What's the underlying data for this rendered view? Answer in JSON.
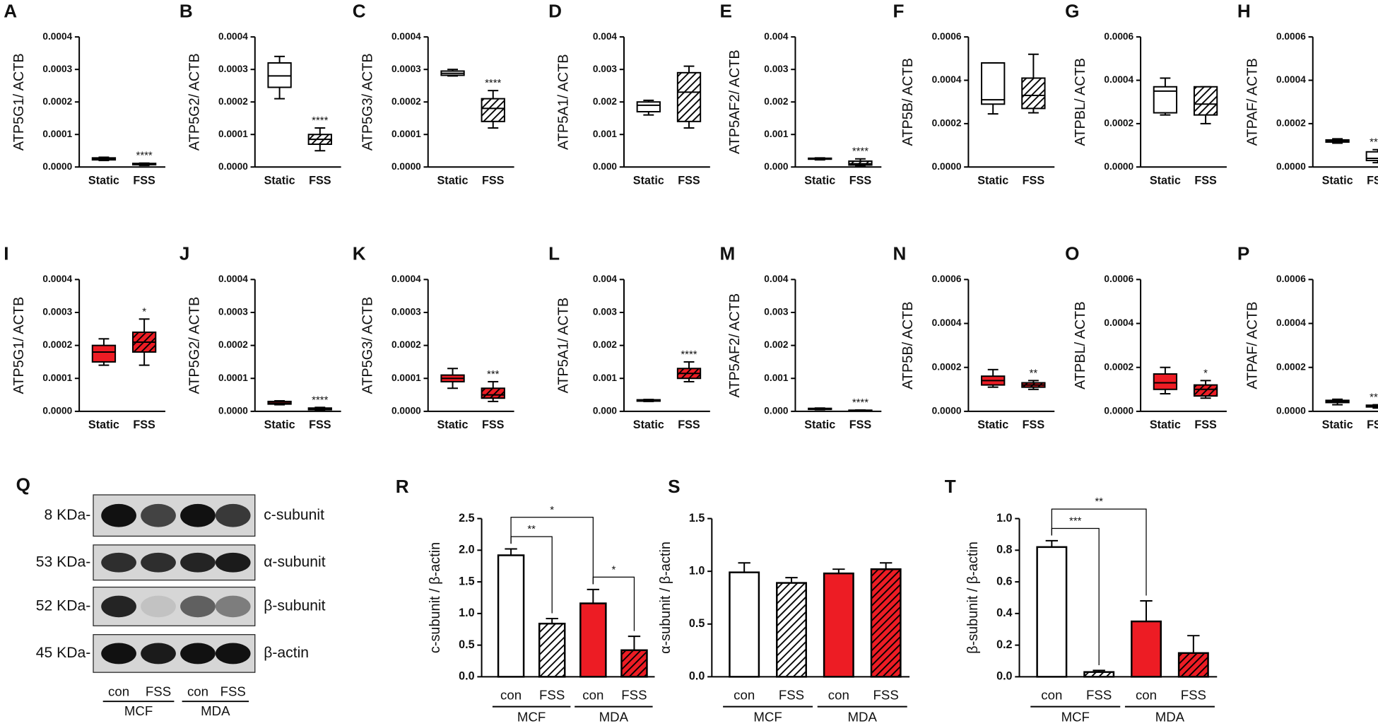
{
  "chart_data": [
    {
      "type": "box",
      "label": "A",
      "ylabel": "ATP5G1/ ACTB",
      "categories": [
        "Static",
        "FSS"
      ],
      "ylim": [
        0,
        0.0004
      ],
      "yticks": [
        {
          "value": 0,
          "label": "0.0000"
        },
        {
          "value": 0.0001,
          "label": "0.0001"
        },
        {
          "value": 0.0002,
          "label": "0.0002"
        },
        {
          "value": 0.0003,
          "label": "0.0003"
        },
        {
          "value": 0.0004,
          "label": "0.0004"
        }
      ],
      "boxes": [
        {
          "min": 2e-05,
          "q1": 2.2e-05,
          "median": 2.5e-05,
          "q3": 2.8e-05,
          "max": 3e-05,
          "color": "#ffffff",
          "hatch": false
        },
        {
          "min": 5e-06,
          "q1": 7e-06,
          "median": 9e-06,
          "q3": 1.1e-05,
          "max": 1.2e-05,
          "color": "#ffffff",
          "hatch": true,
          "sig": "****"
        }
      ]
    },
    {
      "type": "box",
      "label": "B",
      "ylabel": "ATP5G2/ ACTB",
      "categories": [
        "Static",
        "FSS"
      ],
      "ylim": [
        0,
        0.0004
      ],
      "yticks": [
        {
          "value": 0,
          "label": "0.0000"
        },
        {
          "value": 0.0001,
          "label": "0.0001"
        },
        {
          "value": 0.0002,
          "label": "0.0002"
        },
        {
          "value": 0.0003,
          "label": "0.0003"
        },
        {
          "value": 0.0004,
          "label": "0.0004"
        }
      ],
      "boxes": [
        {
          "min": 0.00021,
          "q1": 0.000245,
          "median": 0.00028,
          "q3": 0.00032,
          "max": 0.00034,
          "color": "#ffffff",
          "hatch": false
        },
        {
          "min": 5e-05,
          "q1": 7e-05,
          "median": 8.5e-05,
          "q3": 0.0001,
          "max": 0.00012,
          "color": "#ffffff",
          "hatch": true,
          "sig": "****"
        }
      ]
    },
    {
      "type": "box",
      "label": "C",
      "ylabel": "ATP5G3/ ACTB",
      "categories": [
        "Static",
        "FSS"
      ],
      "ylim": [
        0,
        0.0004
      ],
      "yticks": [
        {
          "value": 0,
          "label": "0.0000"
        },
        {
          "value": 0.0001,
          "label": "0.0001"
        },
        {
          "value": 0.0002,
          "label": "0.0002"
        },
        {
          "value": 0.0003,
          "label": "0.0003"
        },
        {
          "value": 0.0004,
          "label": "0.0004"
        }
      ],
      "boxes": [
        {
          "min": 0.00028,
          "q1": 0.000282,
          "median": 0.000288,
          "q3": 0.000295,
          "max": 0.0003,
          "color": "#ffffff",
          "hatch": false
        },
        {
          "min": 0.00012,
          "q1": 0.00014,
          "median": 0.00018,
          "q3": 0.00021,
          "max": 0.000235,
          "color": "#ffffff",
          "hatch": true,
          "sig": "****"
        }
      ]
    },
    {
      "type": "box",
      "label": "D",
      "ylabel": "ATP5A1/ ACTB",
      "categories": [
        "Static",
        "FSS"
      ],
      "ylim": [
        0,
        0.004
      ],
      "yticks": [
        {
          "value": 0,
          "label": "0.000"
        },
        {
          "value": 0.001,
          "label": "0.001"
        },
        {
          "value": 0.002,
          "label": "0.002"
        },
        {
          "value": 0.003,
          "label": "0.003"
        },
        {
          "value": 0.004,
          "label": "0.004"
        }
      ],
      "boxes": [
        {
          "min": 0.0016,
          "q1": 0.0017,
          "median": 0.0019,
          "q3": 0.002,
          "max": 0.00205,
          "color": "#ffffff",
          "hatch": false
        },
        {
          "min": 0.0012,
          "q1": 0.0014,
          "median": 0.0023,
          "q3": 0.0029,
          "max": 0.0031,
          "color": "#ffffff",
          "hatch": true
        }
      ]
    },
    {
      "type": "box",
      "label": "E",
      "ylabel": "ATP5AF2/ ACTB",
      "categories": [
        "Static",
        "FSS"
      ],
      "ylim": [
        0,
        0.004
      ],
      "yticks": [
        {
          "value": 0,
          "label": "0.000"
        },
        {
          "value": 0.001,
          "label": "0.001"
        },
        {
          "value": 0.002,
          "label": "0.002"
        },
        {
          "value": 0.003,
          "label": "0.003"
        },
        {
          "value": 0.004,
          "label": "0.004"
        }
      ],
      "boxes": [
        {
          "min": 0.00022,
          "q1": 0.00024,
          "median": 0.00025,
          "q3": 0.00027,
          "max": 0.00028,
          "color": "#ffffff",
          "hatch": false
        },
        {
          "min": 2e-05,
          "q1": 6e-05,
          "median": 0.0001,
          "q3": 0.00018,
          "max": 0.00025,
          "color": "#ffffff",
          "hatch": true,
          "sig": "****"
        }
      ]
    },
    {
      "type": "box",
      "label": "F",
      "ylabel": "ATP5B/ ACTB",
      "categories": [
        "Static",
        "FSS"
      ],
      "ylim": [
        0,
        0.0006
      ],
      "yticks": [
        {
          "value": 0,
          "label": "0.0000"
        },
        {
          "value": 0.0002,
          "label": "0.0002"
        },
        {
          "value": 0.0004,
          "label": "0.0004"
        },
        {
          "value": 0.0006,
          "label": "0.0006"
        }
      ],
      "boxes": [
        {
          "min": 0.000245,
          "q1": 0.00029,
          "median": 0.00031,
          "q3": 0.00048,
          "max": 0.00048,
          "color": "#ffffff",
          "hatch": false
        },
        {
          "min": 0.00025,
          "q1": 0.00027,
          "median": 0.00033,
          "q3": 0.00041,
          "max": 0.00052,
          "color": "#ffffff",
          "hatch": true
        }
      ]
    },
    {
      "type": "box",
      "label": "G",
      "ylabel": "ATPBL/ ACTB",
      "categories": [
        "Static",
        "FSS"
      ],
      "ylim": [
        0,
        0.0006
      ],
      "yticks": [
        {
          "value": 0,
          "label": "0.0000"
        },
        {
          "value": 0.0002,
          "label": "0.0002"
        },
        {
          "value": 0.0004,
          "label": "0.0004"
        },
        {
          "value": 0.0006,
          "label": "0.0006"
        }
      ],
      "boxes": [
        {
          "min": 0.00024,
          "q1": 0.00025,
          "median": 0.00035,
          "q3": 0.00037,
          "max": 0.00041,
          "color": "#ffffff",
          "hatch": false
        },
        {
          "min": 0.0002,
          "q1": 0.00024,
          "median": 0.00029,
          "q3": 0.00037,
          "max": 0.00037,
          "color": "#ffffff",
          "hatch": true
        }
      ]
    },
    {
      "type": "box",
      "label": "H",
      "ylabel": "ATPAF/ ACTB",
      "categories": [
        "Static",
        "FSS"
      ],
      "ylim": [
        0,
        0.0006
      ],
      "yticks": [
        {
          "value": 0,
          "label": "0.0000"
        },
        {
          "value": 0.0002,
          "label": "0.0002"
        },
        {
          "value": 0.0004,
          "label": "0.0004"
        },
        {
          "value": 0.0006,
          "label": "0.0006"
        }
      ],
      "boxes": [
        {
          "min": 0.00011,
          "q1": 0.000115,
          "median": 0.00012,
          "q3": 0.000125,
          "max": 0.00013,
          "color": "#ffffff",
          "hatch": false
        },
        {
          "min": 2e-05,
          "q1": 3e-05,
          "median": 4e-05,
          "q3": 7e-05,
          "max": 8e-05,
          "color": "#ffffff",
          "hatch": false,
          "sig": "****"
        }
      ]
    },
    {
      "type": "box",
      "label": "I",
      "ylabel": "ATP5G1/ ACTB",
      "categories": [
        "Static",
        "FSS"
      ],
      "ylim": [
        0,
        0.0004
      ],
      "yticks": [
        {
          "value": 0,
          "label": "0.0000"
        },
        {
          "value": 0.0001,
          "label": "0.0001"
        },
        {
          "value": 0.0002,
          "label": "0.0002"
        },
        {
          "value": 0.0003,
          "label": "0.0003"
        },
        {
          "value": 0.0004,
          "label": "0.0004"
        }
      ],
      "boxes": [
        {
          "min": 0.00014,
          "q1": 0.00015,
          "median": 0.00018,
          "q3": 0.0002,
          "max": 0.00022,
          "color": "#ed1c24",
          "hatch": false
        },
        {
          "min": 0.00014,
          "q1": 0.00018,
          "median": 0.00021,
          "q3": 0.00024,
          "max": 0.00028,
          "color": "#ed1c24",
          "hatch": true,
          "sig": "*"
        }
      ]
    },
    {
      "type": "box",
      "label": "J",
      "ylabel": "ATP5G2/ ACTB",
      "categories": [
        "Static",
        "FSS"
      ],
      "ylim": [
        0,
        0.0004
      ],
      "yticks": [
        {
          "value": 0,
          "label": "0.0000"
        },
        {
          "value": 0.0001,
          "label": "0.0001"
        },
        {
          "value": 0.0002,
          "label": "0.0002"
        },
        {
          "value": 0.0003,
          "label": "0.0003"
        },
        {
          "value": 0.0004,
          "label": "0.0004"
        }
      ],
      "boxes": [
        {
          "min": 2e-05,
          "q1": 2.2e-05,
          "median": 2.5e-05,
          "q3": 3e-05,
          "max": 3.2e-05,
          "color": "#ed1c24",
          "hatch": false
        },
        {
          "min": 3e-06,
          "q1": 5e-06,
          "median": 8e-06,
          "q3": 1e-05,
          "max": 1.2e-05,
          "color": "#ed1c24",
          "hatch": true,
          "sig": "****"
        }
      ]
    },
    {
      "type": "box",
      "label": "K",
      "ylabel": "ATP5G3/ ACTB",
      "categories": [
        "Static",
        "FSS"
      ],
      "ylim": [
        0,
        0.0004
      ],
      "yticks": [
        {
          "value": 0,
          "label": "0.0000"
        },
        {
          "value": 0.0001,
          "label": "0.0001"
        },
        {
          "value": 0.0002,
          "label": "0.0002"
        },
        {
          "value": 0.0003,
          "label": "0.0003"
        },
        {
          "value": 0.0004,
          "label": "0.0004"
        }
      ],
      "boxes": [
        {
          "min": 7e-05,
          "q1": 9e-05,
          "median": 0.0001,
          "q3": 0.00011,
          "max": 0.00013,
          "color": "#ed1c24",
          "hatch": false
        },
        {
          "min": 3e-05,
          "q1": 4e-05,
          "median": 5e-05,
          "q3": 7e-05,
          "max": 9e-05,
          "color": "#ed1c24",
          "hatch": true,
          "sig": "***"
        }
      ]
    },
    {
      "type": "box",
      "label": "L",
      "ylabel": "ATP5A1/ ACTB",
      "categories": [
        "Static",
        "FSS"
      ],
      "ylim": [
        0,
        0.004
      ],
      "yticks": [
        {
          "value": 0,
          "label": "0.000"
        },
        {
          "value": 0.001,
          "label": "0.001"
        },
        {
          "value": 0.002,
          "label": "0.002"
        },
        {
          "value": 0.003,
          "label": "0.003"
        },
        {
          "value": 0.004,
          "label": "0.004"
        }
      ],
      "boxes": [
        {
          "min": 0.0003,
          "q1": 0.00031,
          "median": 0.00033,
          "q3": 0.00035,
          "max": 0.00036,
          "color": "#ed1c24",
          "hatch": false
        },
        {
          "min": 0.0009,
          "q1": 0.001,
          "median": 0.00115,
          "q3": 0.0013,
          "max": 0.0015,
          "color": "#ed1c24",
          "hatch": true,
          "sig": "****"
        }
      ]
    },
    {
      "type": "box",
      "label": "M",
      "ylabel": "ATP5AF2/ ACTB",
      "categories": [
        "Static",
        "FSS"
      ],
      "ylim": [
        0,
        0.004
      ],
      "yticks": [
        {
          "value": 0,
          "label": "0.000"
        },
        {
          "value": 0.001,
          "label": "0.001"
        },
        {
          "value": 0.002,
          "label": "0.002"
        },
        {
          "value": 0.003,
          "label": "0.003"
        },
        {
          "value": 0.004,
          "label": "0.004"
        }
      ],
      "boxes": [
        {
          "min": 5e-05,
          "q1": 6e-05,
          "median": 8e-05,
          "q3": 9e-05,
          "max": 0.0001,
          "color": "#ed1c24",
          "hatch": false
        },
        {
          "min": 1e-05,
          "q1": 2e-05,
          "median": 3e-05,
          "q3": 3.5e-05,
          "max": 4e-05,
          "color": "#ed1c24",
          "hatch": true,
          "sig": "****"
        }
      ]
    },
    {
      "type": "box",
      "label": "N",
      "ylabel": "ATP5B/ ACTB",
      "categories": [
        "Static",
        "FSS"
      ],
      "ylim": [
        0,
        0.0006
      ],
      "yticks": [
        {
          "value": 0,
          "label": "0.0000"
        },
        {
          "value": 0.0002,
          "label": "0.0002"
        },
        {
          "value": 0.0004,
          "label": "0.0004"
        },
        {
          "value": 0.0006,
          "label": "0.0006"
        }
      ],
      "boxes": [
        {
          "min": 0.00011,
          "q1": 0.00012,
          "median": 0.00014,
          "q3": 0.00016,
          "max": 0.00019,
          "color": "#ed1c24",
          "hatch": false
        },
        {
          "min": 0.0001,
          "q1": 0.00011,
          "median": 0.00012,
          "q3": 0.00013,
          "max": 0.00014,
          "color": "#ed1c24",
          "hatch": true,
          "sig": "**"
        }
      ]
    },
    {
      "type": "box",
      "label": "O",
      "ylabel": "ATPBL/ ACTB",
      "categories": [
        "Static",
        "FSS"
      ],
      "ylim": [
        0,
        0.0006
      ],
      "yticks": [
        {
          "value": 0,
          "label": "0.0000"
        },
        {
          "value": 0.0002,
          "label": "0.0002"
        },
        {
          "value": 0.0004,
          "label": "0.0004"
        },
        {
          "value": 0.0006,
          "label": "0.0006"
        }
      ],
      "boxes": [
        {
          "min": 8e-05,
          "q1": 0.0001,
          "median": 0.00013,
          "q3": 0.00017,
          "max": 0.0002,
          "color": "#ed1c24",
          "hatch": false
        },
        {
          "min": 6e-05,
          "q1": 7e-05,
          "median": 0.0001,
          "q3": 0.00012,
          "max": 0.00014,
          "color": "#ed1c24",
          "hatch": true,
          "sig": "*"
        }
      ]
    },
    {
      "type": "box",
      "label": "P",
      "ylabel": "ATPAF/ ACTB",
      "categories": [
        "Static",
        "FSS"
      ],
      "ylim": [
        0,
        0.0006
      ],
      "yticks": [
        {
          "value": 0,
          "label": "0.0000"
        },
        {
          "value": 0.0002,
          "label": "0.0002"
        },
        {
          "value": 0.0004,
          "label": "0.0004"
        },
        {
          "value": 0.0006,
          "label": "0.0006"
        }
      ],
      "boxes": [
        {
          "min": 3e-05,
          "q1": 4e-05,
          "median": 4.5e-05,
          "q3": 5e-05,
          "max": 5.5e-05,
          "color": "#ed1c24",
          "hatch": false
        },
        {
          "min": 1.5e-05,
          "q1": 2e-05,
          "median": 2.2e-05,
          "q3": 2.8e-05,
          "max": 3e-05,
          "color": "#ed1c24",
          "hatch": false,
          "sig": "****"
        }
      ]
    },
    {
      "type": "blot",
      "label": "Q",
      "markers": [
        "8 KDa-",
        "53 KDa-",
        "52 KDa-",
        "45 KDa-"
      ],
      "proteins": [
        "c-subunit",
        "α-subunit",
        "β-subunit",
        "β-actin"
      ],
      "lanes": [
        "con",
        "FSS",
        "con",
        "FSS"
      ],
      "groups": [
        "MCF",
        "MDA"
      ]
    },
    {
      "type": "bar",
      "label": "R",
      "ylabel": "c-subunit / β-actin",
      "categories": [
        "con",
        "FSS",
        "con",
        "FSS"
      ],
      "groups": [
        "MCF",
        "MDA"
      ],
      "values": [
        1.92,
        0.84,
        1.16,
        0.42
      ],
      "errors": [
        0.1,
        0.08,
        0.22,
        0.22
      ],
      "colors": [
        "#ffffff",
        "#ffffff",
        "#ed1c24",
        "#ed1c24"
      ],
      "hatch": [
        false,
        true,
        false,
        true
      ],
      "ylim": [
        0,
        2.5
      ],
      "yticks": [
        {
          "value": 0,
          "label": "0.0"
        },
        0.5,
        {
          "value": 1,
          "label": "1.0"
        },
        1.5,
        {
          "value": 2,
          "label": "2.0"
        },
        2.5
      ],
      "brackets": [
        {
          "from": 0,
          "to": 1,
          "text": "**"
        },
        {
          "from": 2,
          "to": 3,
          "text": "*"
        },
        {
          "from": 0,
          "to": 2,
          "text": "*"
        }
      ]
    },
    {
      "type": "bar",
      "label": "S",
      "ylabel": "α-subunit / β-actin",
      "categories": [
        "con",
        "FSS",
        "con",
        "FSS"
      ],
      "groups": [
        "MCF",
        "MDA"
      ],
      "values": [
        0.99,
        0.89,
        0.98,
        1.02
      ],
      "errors": [
        0.09,
        0.05,
        0.04,
        0.06
      ],
      "colors": [
        "#ffffff",
        "#ffffff",
        "#ed1c24",
        "#ed1c24"
      ],
      "hatch": [
        false,
        true,
        false,
        true
      ],
      "ylim": [
        0,
        1.5
      ],
      "yticks": [
        {
          "value": 0,
          "label": "0.0"
        },
        0.5,
        {
          "value": 1,
          "label": "1.0"
        },
        1.5
      ]
    },
    {
      "type": "bar",
      "label": "T",
      "ylabel": "β-subunit / β-actin",
      "categories": [
        "con",
        "FSS",
        "con",
        "FSS"
      ],
      "groups": [
        "MCF",
        "MDA"
      ],
      "values": [
        0.82,
        0.03,
        0.35,
        0.15
      ],
      "errors": [
        0.04,
        0.01,
        0.13,
        0.11
      ],
      "colors": [
        "#ffffff",
        "#ffffff",
        "#ed1c24",
        "#ed1c24"
      ],
      "hatch": [
        false,
        true,
        false,
        true
      ],
      "ylim": [
        0,
        1
      ],
      "yticks": [
        {
          "value": 0,
          "label": "0.0"
        },
        0.2,
        0.4,
        0.6,
        0.8,
        {
          "value": 1,
          "label": "1.0"
        }
      ],
      "brackets": [
        {
          "from": 0,
          "to": 1,
          "text": "***"
        },
        {
          "from": 0,
          "to": 2,
          "text": "**"
        }
      ]
    }
  ]
}
